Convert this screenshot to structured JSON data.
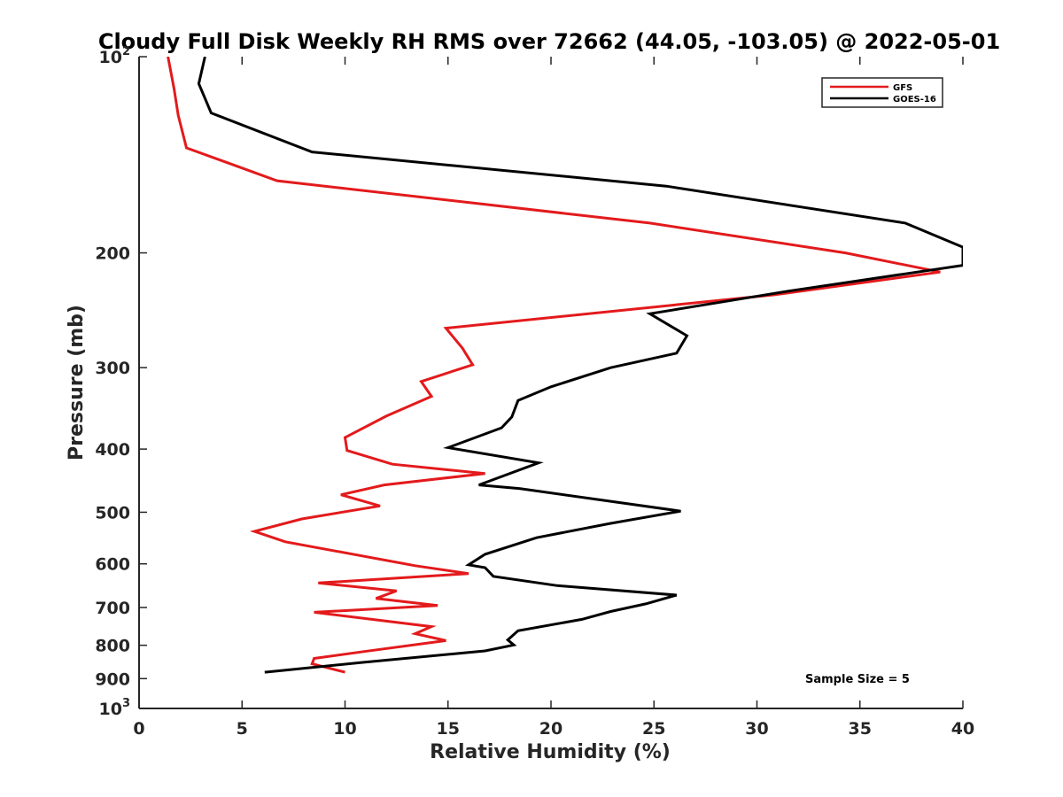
{
  "chart_data": {
    "type": "line",
    "title": "Cloudy Full Disk Weekly RH RMS over 72662 (44.05, -103.05) @ 2022-05-01",
    "xlabel": "Relative Humidity (%)",
    "ylabel": "Pressure (mb)",
    "xlim": [
      0,
      40
    ],
    "ylim": [
      100,
      1000
    ],
    "y_scale": "log",
    "y_reversed": true,
    "grid": false,
    "x_ticks": [
      "0",
      "5",
      "10",
      "15",
      "20",
      "25",
      "30",
      "35",
      "40"
    ],
    "y_ticks": [
      {
        "value": 100,
        "base": "10",
        "exp": "2"
      },
      {
        "value": 200,
        "base": "200",
        "exp": ""
      },
      {
        "value": 300,
        "base": "300",
        "exp": ""
      },
      {
        "value": 400,
        "base": "400",
        "exp": ""
      },
      {
        "value": 500,
        "base": "500",
        "exp": ""
      },
      {
        "value": 600,
        "base": "600",
        "exp": ""
      },
      {
        "value": 700,
        "base": "700",
        "exp": ""
      },
      {
        "value": 800,
        "base": "800",
        "exp": ""
      },
      {
        "value": 900,
        "base": "900",
        "exp": ""
      },
      {
        "value": 1000,
        "base": "10",
        "exp": "3"
      }
    ],
    "legend": {
      "placement": "top-right"
    },
    "annotation": "Sample Size = 5",
    "series": [
      {
        "name": "GFS",
        "color": "#e31a1c",
        "x": [
          1.4,
          1.7,
          1.9,
          2.3,
          6.7,
          24.8,
          34.3,
          38.9,
          30.8,
          14.9,
          15.7,
          16.2,
          13.7,
          14.2,
          12.0,
          10.0,
          10.1,
          12.3,
          16.8,
          11.9,
          9.8,
          11.7,
          7.9,
          5.6,
          7.1,
          13.4,
          16.0,
          8.7,
          12.5,
          11.5,
          14.5,
          8.5,
          14.2,
          13.4,
          14.9,
          10.9,
          8.5,
          8.4,
          10.0
        ],
        "y": [
          100,
          112,
          123,
          138,
          155,
          180,
          200,
          214,
          232,
          261,
          280,
          297,
          315,
          332,
          356,
          384,
          402,
          422,
          436,
          454,
          470,
          489,
          512,
          535,
          555,
          604,
          621,
          642,
          660,
          678,
          695,
          712,
          749,
          768,
          787,
          818,
          838,
          854,
          880
        ]
      },
      {
        "name": "GOES-16",
        "color": "#000000",
        "x": [
          3.2,
          2.9,
          3.5,
          8.4,
          25.6,
          37.2,
          40.0,
          40.0,
          31.5,
          24.8,
          26.6,
          26.1,
          22.9,
          20.0,
          18.4,
          18.1,
          17.6,
          15.0,
          19.4,
          16.5,
          18.5,
          26.3,
          22.9,
          19.3,
          16.8,
          16.0,
          16.8,
          17.2,
          20.3,
          26.1,
          24.6,
          22.9,
          21.5,
          18.4,
          17.9,
          18.2,
          16.8,
          10.8,
          6.1
        ],
        "y": [
          100,
          110,
          122,
          140,
          158,
          180,
          196,
          209,
          229,
          248,
          268,
          285,
          300,
          321,
          337,
          357,
          371,
          398,
          420,
          454,
          460,
          498,
          520,
          547,
          580,
          602,
          608,
          627,
          648,
          670,
          691,
          710,
          730,
          760,
          785,
          799,
          816,
          850,
          880
        ]
      }
    ]
  }
}
